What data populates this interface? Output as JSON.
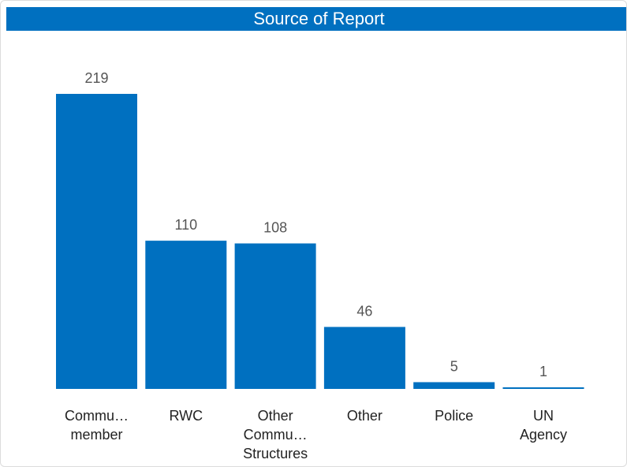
{
  "panel": {
    "title": "Source of Report"
  },
  "colors": {
    "accent": "#0070c0",
    "header_bg": "#0070c0",
    "value_text": "#555555",
    "category_text": "#222222"
  },
  "chart_data": {
    "type": "bar",
    "title": "Source of Report",
    "xlabel": "",
    "ylabel": "",
    "categories": [
      "Commu… member",
      "RWC",
      "Other Commu… Structures",
      "Other",
      "Police",
      "UN Agency"
    ],
    "category_lines": [
      [
        "Commu…",
        "member"
      ],
      [
        "RWC"
      ],
      [
        "Other",
        "Commu…",
        "Structures"
      ],
      [
        "Other"
      ],
      [
        "Police"
      ],
      [
        "UN",
        "Agency"
      ]
    ],
    "values": [
      219,
      110,
      108,
      46,
      5,
      1
    ],
    "ylim": [
      0,
      219
    ],
    "grid": false,
    "legend": "none"
  }
}
